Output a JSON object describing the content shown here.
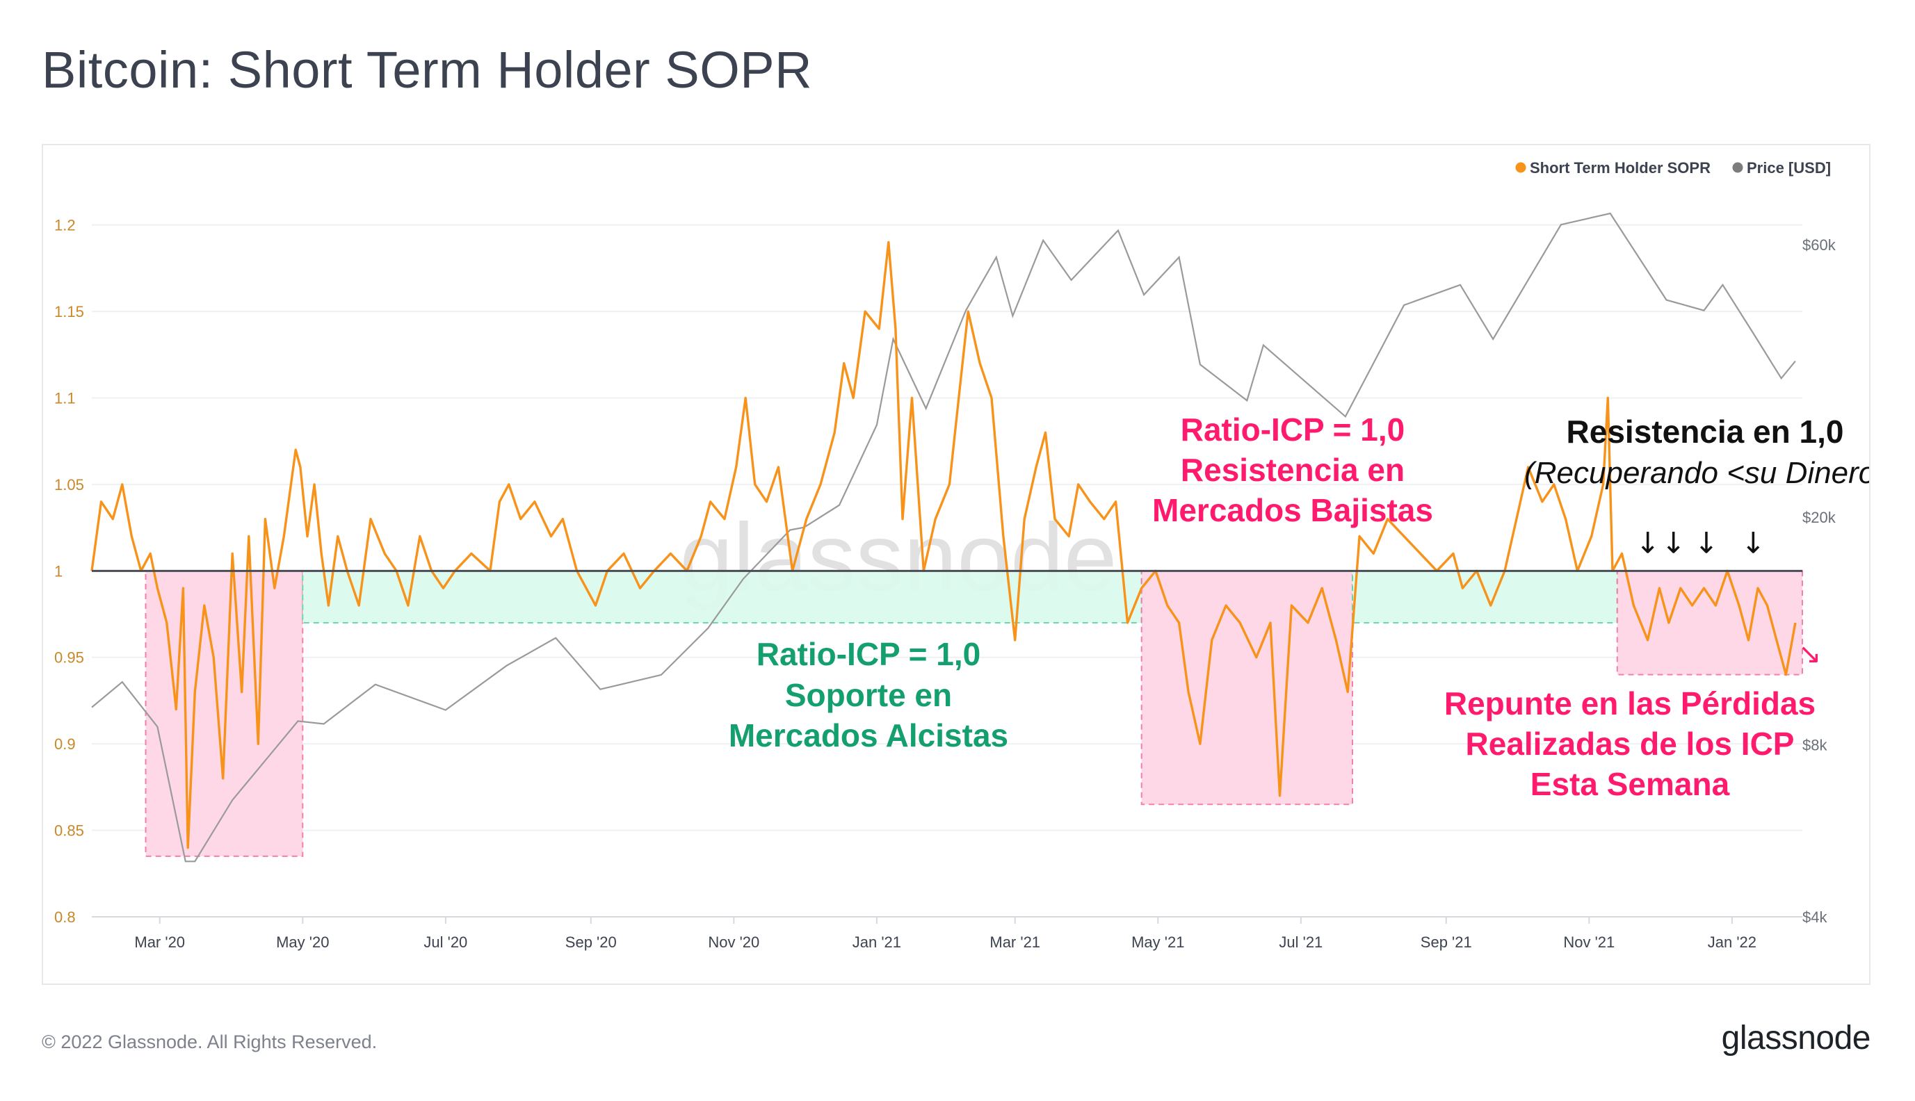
{
  "title": "Bitcoin: Short Term Holder SOPR",
  "footer": {
    "copyright": "© 2022 Glassnode. All Rights Reserved.",
    "logo_text": "glassnode"
  },
  "watermark": "glassnode",
  "colors": {
    "sopr": "#f7931a",
    "price": "#9a9a9a",
    "baseline": "#4a4d55",
    "accent_pink": "#ff1a6e",
    "accent_green": "#13a06e",
    "pink_zone": "#ffd6e6",
    "green_zone": "#dcfaee",
    "left_axis_text": "#c8882a",
    "right_axis_text": "#6b6f78"
  },
  "chart_data": {
    "type": "line",
    "title": "Bitcoin: Short Term Holder SOPR",
    "x_range": [
      "2020-02-01",
      "2022-01-31"
    ],
    "x_ticks": [
      "Mar '20",
      "May '20",
      "Jul '20",
      "Sep '20",
      "Nov '20",
      "Jan '21",
      "Mar '21",
      "May '21",
      "Jul '21",
      "Sep '21",
      "Nov '21",
      "Jan '22"
    ],
    "x_tick_dates": [
      "2020-03-01",
      "2020-05-01",
      "2020-07-01",
      "2020-09-01",
      "2020-11-01",
      "2021-01-01",
      "2021-03-01",
      "2021-05-01",
      "2021-07-01",
      "2021-09-01",
      "2021-11-01",
      "2022-01-01"
    ],
    "y_left": {
      "label": "Short Term Holder SOPR",
      "ylim": [
        0.8,
        1.23
      ],
      "ticks": [
        "1.2",
        "1.15",
        "1.1",
        "1.05",
        "1",
        "0.95",
        "0.9",
        "0.85",
        "0.8"
      ],
      "tick_values": [
        1.2,
        1.15,
        1.1,
        1.05,
        1.0,
        0.95,
        0.9,
        0.85,
        0.8
      ]
    },
    "y_right": {
      "label": "Price [USD]",
      "scale": "log",
      "ylim": [
        4000,
        80000
      ],
      "ticks": [
        "$60k",
        "$20k",
        "$8k",
        "$4k"
      ],
      "tick_values": [
        60000,
        20000,
        8000,
        4000
      ]
    },
    "legend": {
      "placement": "top-right",
      "entries": [
        "Short Term Holder SOPR",
        "Price [USD]"
      ]
    },
    "series": [
      {
        "name": "Short Term Holder SOPR",
        "color": "#f7931a",
        "points": [
          [
            "2020-02-01",
            1.0
          ],
          [
            "2020-02-05",
            1.04
          ],
          [
            "2020-02-10",
            1.03
          ],
          [
            "2020-02-14",
            1.05
          ],
          [
            "2020-02-18",
            1.02
          ],
          [
            "2020-02-22",
            1.0
          ],
          [
            "2020-02-26",
            1.01
          ],
          [
            "2020-02-29",
            0.99
          ],
          [
            "2020-03-04",
            0.97
          ],
          [
            "2020-03-08",
            0.92
          ],
          [
            "2020-03-11",
            0.99
          ],
          [
            "2020-03-13",
            0.84
          ],
          [
            "2020-03-16",
            0.93
          ],
          [
            "2020-03-20",
            0.98
          ],
          [
            "2020-03-24",
            0.95
          ],
          [
            "2020-03-28",
            0.88
          ],
          [
            "2020-04-01",
            1.01
          ],
          [
            "2020-04-05",
            0.93
          ],
          [
            "2020-04-08",
            1.02
          ],
          [
            "2020-04-12",
            0.9
          ],
          [
            "2020-04-15",
            1.03
          ],
          [
            "2020-04-19",
            0.99
          ],
          [
            "2020-04-23",
            1.02
          ],
          [
            "2020-04-28",
            1.07
          ],
          [
            "2020-04-30",
            1.06
          ],
          [
            "2020-05-03",
            1.02
          ],
          [
            "2020-05-06",
            1.05
          ],
          [
            "2020-05-09",
            1.01
          ],
          [
            "2020-05-12",
            0.98
          ],
          [
            "2020-05-16",
            1.02
          ],
          [
            "2020-05-20",
            1.0
          ],
          [
            "2020-05-25",
            0.98
          ],
          [
            "2020-05-30",
            1.03
          ],
          [
            "2020-06-05",
            1.01
          ],
          [
            "2020-06-10",
            1.0
          ],
          [
            "2020-06-15",
            0.98
          ],
          [
            "2020-06-20",
            1.02
          ],
          [
            "2020-06-25",
            1.0
          ],
          [
            "2020-06-30",
            0.99
          ],
          [
            "2020-07-05",
            1.0
          ],
          [
            "2020-07-12",
            1.01
          ],
          [
            "2020-07-20",
            1.0
          ],
          [
            "2020-07-24",
            1.04
          ],
          [
            "2020-07-28",
            1.05
          ],
          [
            "2020-08-02",
            1.03
          ],
          [
            "2020-08-08",
            1.04
          ],
          [
            "2020-08-15",
            1.02
          ],
          [
            "2020-08-20",
            1.03
          ],
          [
            "2020-08-26",
            1.0
          ],
          [
            "2020-09-03",
            0.98
          ],
          [
            "2020-09-08",
            1.0
          ],
          [
            "2020-09-15",
            1.01
          ],
          [
            "2020-09-22",
            0.99
          ],
          [
            "2020-09-28",
            1.0
          ],
          [
            "2020-10-05",
            1.01
          ],
          [
            "2020-10-12",
            1.0
          ],
          [
            "2020-10-18",
            1.02
          ],
          [
            "2020-10-22",
            1.04
          ],
          [
            "2020-10-28",
            1.03
          ],
          [
            "2020-11-02",
            1.06
          ],
          [
            "2020-11-06",
            1.1
          ],
          [
            "2020-11-10",
            1.05
          ],
          [
            "2020-11-15",
            1.04
          ],
          [
            "2020-11-20",
            1.06
          ],
          [
            "2020-11-26",
            1.0
          ],
          [
            "2020-12-02",
            1.03
          ],
          [
            "2020-12-08",
            1.05
          ],
          [
            "2020-12-14",
            1.08
          ],
          [
            "2020-12-18",
            1.12
          ],
          [
            "2020-12-22",
            1.1
          ],
          [
            "2020-12-27",
            1.15
          ],
          [
            "2021-01-02",
            1.14
          ],
          [
            "2021-01-06",
            1.19
          ],
          [
            "2021-01-09",
            1.14
          ],
          [
            "2021-01-12",
            1.03
          ],
          [
            "2021-01-16",
            1.1
          ],
          [
            "2021-01-21",
            1.0
          ],
          [
            "2021-01-26",
            1.03
          ],
          [
            "2021-02-01",
            1.05
          ],
          [
            "2021-02-05",
            1.1
          ],
          [
            "2021-02-09",
            1.15
          ],
          [
            "2021-02-14",
            1.12
          ],
          [
            "2021-02-19",
            1.1
          ],
          [
            "2021-02-24",
            1.02
          ],
          [
            "2021-03-01",
            0.96
          ],
          [
            "2021-03-05",
            1.03
          ],
          [
            "2021-03-10",
            1.06
          ],
          [
            "2021-03-14",
            1.08
          ],
          [
            "2021-03-18",
            1.03
          ],
          [
            "2021-03-24",
            1.02
          ],
          [
            "2021-03-28",
            1.05
          ],
          [
            "2021-04-02",
            1.04
          ],
          [
            "2021-04-08",
            1.03
          ],
          [
            "2021-04-13",
            1.04
          ],
          [
            "2021-04-18",
            0.97
          ],
          [
            "2021-04-24",
            0.99
          ],
          [
            "2021-04-30",
            1.0
          ],
          [
            "2021-05-05",
            0.98
          ],
          [
            "2021-05-10",
            0.97
          ],
          [
            "2021-05-14",
            0.93
          ],
          [
            "2021-05-19",
            0.9
          ],
          [
            "2021-05-24",
            0.96
          ],
          [
            "2021-05-30",
            0.98
          ],
          [
            "2021-06-05",
            0.97
          ],
          [
            "2021-06-12",
            0.95
          ],
          [
            "2021-06-18",
            0.97
          ],
          [
            "2021-06-22",
            0.87
          ],
          [
            "2021-06-27",
            0.98
          ],
          [
            "2021-07-04",
            0.97
          ],
          [
            "2021-07-10",
            0.99
          ],
          [
            "2021-07-16",
            0.96
          ],
          [
            "2021-07-21",
            0.93
          ],
          [
            "2021-07-26",
            1.02
          ],
          [
            "2021-08-01",
            1.01
          ],
          [
            "2021-08-07",
            1.03
          ],
          [
            "2021-08-14",
            1.02
          ],
          [
            "2021-08-21",
            1.01
          ],
          [
            "2021-08-28",
            1.0
          ],
          [
            "2021-09-04",
            1.01
          ],
          [
            "2021-09-08",
            0.99
          ],
          [
            "2021-09-14",
            1.0
          ],
          [
            "2021-09-20",
            0.98
          ],
          [
            "2021-09-26",
            1.0
          ],
          [
            "2021-10-01",
            1.03
          ],
          [
            "2021-10-06",
            1.06
          ],
          [
            "2021-10-12",
            1.04
          ],
          [
            "2021-10-17",
            1.05
          ],
          [
            "2021-10-22",
            1.03
          ],
          [
            "2021-10-27",
            1.0
          ],
          [
            "2021-11-02",
            1.02
          ],
          [
            "2021-11-07",
            1.05
          ],
          [
            "2021-11-09",
            1.1
          ],
          [
            "2021-11-11",
            1.0
          ],
          [
            "2021-11-15",
            1.01
          ],
          [
            "2021-11-20",
            0.98
          ],
          [
            "2021-11-26",
            0.96
          ],
          [
            "2021-12-01",
            0.99
          ],
          [
            "2021-12-05",
            0.97
          ],
          [
            "2021-12-10",
            0.99
          ],
          [
            "2021-12-15",
            0.98
          ],
          [
            "2021-12-20",
            0.99
          ],
          [
            "2021-12-25",
            0.98
          ],
          [
            "2021-12-30",
            1.0
          ],
          [
            "2022-01-04",
            0.98
          ],
          [
            "2022-01-08",
            0.96
          ],
          [
            "2022-01-12",
            0.99
          ],
          [
            "2022-01-16",
            0.98
          ],
          [
            "2022-01-20",
            0.96
          ],
          [
            "2022-01-24",
            0.94
          ],
          [
            "2022-01-28",
            0.97
          ]
        ]
      },
      {
        "name": "Price [USD]",
        "color": "#9a9a9a",
        "points": [
          [
            "2020-02-01",
            9300
          ],
          [
            "2020-02-14",
            10300
          ],
          [
            "2020-02-29",
            8600
          ],
          [
            "2020-03-12",
            5000
          ],
          [
            "2020-03-16",
            5000
          ],
          [
            "2020-04-01",
            6400
          ],
          [
            "2020-04-29",
            8800
          ],
          [
            "2020-05-10",
            8700
          ],
          [
            "2020-06-01",
            10200
          ],
          [
            "2020-07-01",
            9200
          ],
          [
            "2020-07-27",
            11000
          ],
          [
            "2020-08-17",
            12300
          ],
          [
            "2020-09-05",
            10000
          ],
          [
            "2020-10-01",
            10600
          ],
          [
            "2020-10-21",
            12800
          ],
          [
            "2020-11-05",
            15600
          ],
          [
            "2020-11-25",
            19000
          ],
          [
            "2020-12-01",
            19200
          ],
          [
            "2020-12-16",
            21000
          ],
          [
            "2021-01-01",
            29000
          ],
          [
            "2021-01-08",
            41000
          ],
          [
            "2021-01-22",
            31000
          ],
          [
            "2021-02-08",
            46000
          ],
          [
            "2021-02-21",
            57000
          ],
          [
            "2021-02-28",
            45000
          ],
          [
            "2021-03-13",
            61000
          ],
          [
            "2021-03-25",
            52000
          ],
          [
            "2021-04-14",
            63500
          ],
          [
            "2021-04-25",
            49000
          ],
          [
            "2021-05-10",
            57000
          ],
          [
            "2021-05-19",
            37000
          ],
          [
            "2021-06-08",
            32000
          ],
          [
            "2021-06-15",
            40000
          ],
          [
            "2021-07-20",
            30000
          ],
          [
            "2021-08-14",
            47000
          ],
          [
            "2021-09-07",
            51000
          ],
          [
            "2021-09-21",
            41000
          ],
          [
            "2021-10-20",
            65000
          ],
          [
            "2021-11-10",
            68000
          ],
          [
            "2021-12-04",
            48000
          ],
          [
            "2021-12-20",
            46000
          ],
          [
            "2021-12-28",
            51000
          ],
          [
            "2022-01-10",
            42000
          ],
          [
            "2022-01-22",
            35000
          ],
          [
            "2022-01-28",
            37500
          ]
        ]
      }
    ],
    "baseline": 1.0,
    "zones": [
      {
        "kind": "loss",
        "start": "2020-02-24",
        "end": "2020-05-01",
        "ymin": 0.835,
        "ymax": 1.0
      },
      {
        "kind": "support",
        "start": "2020-05-01",
        "end": "2021-04-24",
        "ymin": 0.97,
        "ymax": 1.0
      },
      {
        "kind": "loss",
        "start": "2021-04-24",
        "end": "2021-07-23",
        "ymin": 0.865,
        "ymax": 1.0
      },
      {
        "kind": "support",
        "start": "2021-07-23",
        "end": "2021-11-13",
        "ymin": 0.97,
        "ymax": 1.0
      },
      {
        "kind": "loss",
        "start": "2021-11-13",
        "end": "2022-01-31",
        "ymin": 0.94,
        "ymax": 1.0
      }
    ],
    "annotations": {
      "bull_support": [
        "Ratio-ICP = 1,0",
        "Soporte en",
        "Mercados Alcistas"
      ],
      "bear_resistance": [
        "Ratio-ICP = 1,0",
        "Resistencia en",
        "Mercados Bajistas"
      ],
      "resistance_title": "Resistencia en 1,0",
      "resistance_subtitle": "(Recuperando <su Dinero)",
      "losses_spike": [
        "Repunte en las Pérdidas",
        "Realizadas de los ICP",
        "Esta Semana"
      ],
      "arrow_glyph": "↓",
      "arrow_dates": [
        "2021-11-26",
        "2021-12-07",
        "2021-12-21",
        "2022-01-10"
      ],
      "pink_arrow_glyph": "↘"
    }
  }
}
